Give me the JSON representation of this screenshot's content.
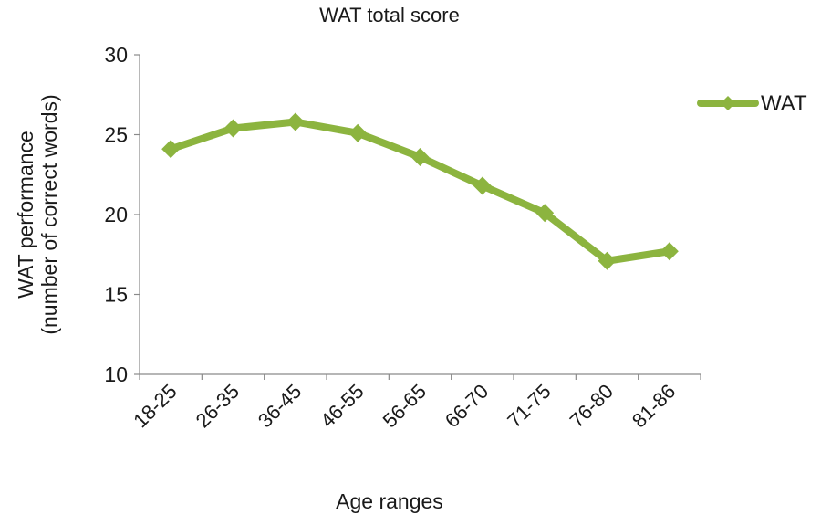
{
  "chart_data": {
    "type": "line",
    "title": "WAT total score",
    "xlabel": "Age ranges",
    "ylabel_line1": "WAT performance",
    "ylabel_line2": "(number of correct words)",
    "categories": [
      "18-25",
      "26-35",
      "36-45",
      "46-55",
      "56-65",
      "66-70",
      "71-75",
      "76-80",
      "81-86"
    ],
    "series": [
      {
        "name": "WAT",
        "values": [
          24.1,
          25.4,
          25.8,
          25.1,
          23.6,
          21.8,
          20.1,
          17.1,
          17.7
        ],
        "color": "#8cb43f"
      }
    ],
    "ylim": [
      10,
      30
    ],
    "yticks": [
      10,
      15,
      20,
      25,
      30
    ],
    "grid": false,
    "legend_position": "right",
    "marker": "diamond"
  }
}
